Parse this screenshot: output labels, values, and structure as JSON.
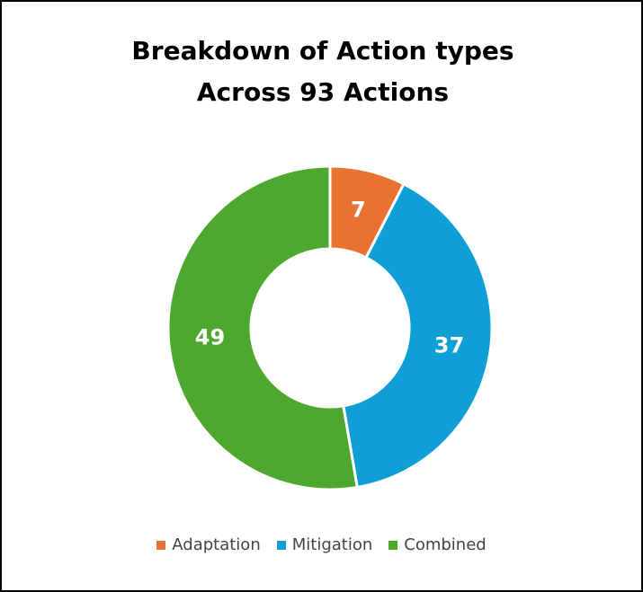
{
  "chart_data": {
    "type": "donut",
    "title": "Breakdown of Action types Across 93 Actions",
    "categories": [
      "Adaptation",
      "Mitigation",
      "Combined"
    ],
    "values": [
      7,
      37,
      49
    ],
    "colors": [
      "#e97132",
      "#0f9ed5",
      "#4ea72e"
    ],
    "legend": "bottom"
  }
}
